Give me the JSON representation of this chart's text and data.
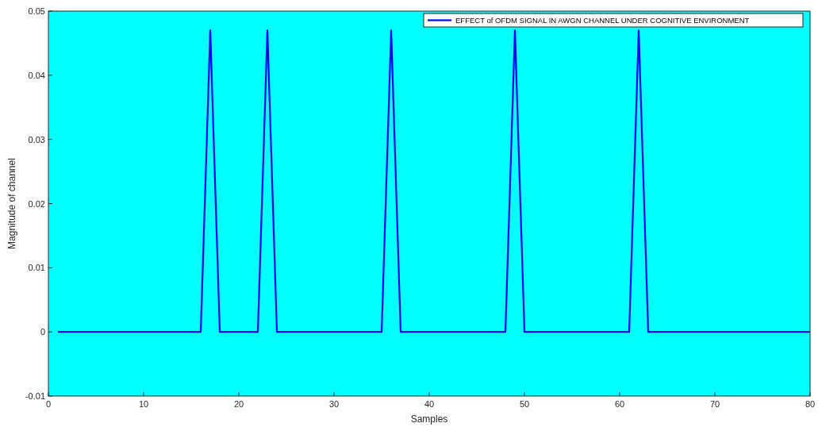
{
  "chart_data": {
    "type": "line",
    "xlabel": "Samples",
    "ylabel": "Magnitude of channel",
    "x": [
      1,
      2,
      3,
      4,
      5,
      6,
      7,
      8,
      9,
      10,
      11,
      12,
      13,
      14,
      15,
      16,
      17,
      18,
      19,
      20,
      21,
      22,
      23,
      24,
      25,
      26,
      27,
      28,
      29,
      30,
      31,
      32,
      33,
      34,
      35,
      36,
      37,
      38,
      39,
      40,
      41,
      42,
      43,
      44,
      45,
      46,
      47,
      48,
      49,
      50,
      51,
      52,
      53,
      54,
      55,
      56,
      57,
      58,
      59,
      60,
      61,
      62,
      63,
      64,
      65,
      66,
      67,
      68,
      69,
      70,
      71,
      72,
      73,
      74,
      75,
      76,
      77,
      78,
      79,
      80
    ],
    "series": [
      {
        "name": "EFFECT of OFDM SIGNAL IN AWGN CHANNEL UNDER COGNITIVE ENVIRONMENT",
        "color": "#0000ff",
        "values": [
          0,
          0,
          0,
          0,
          0,
          0,
          0,
          0,
          0,
          0,
          0,
          0,
          0,
          0,
          0,
          0,
          0.047,
          0,
          0,
          0,
          0,
          0,
          0.047,
          0,
          0,
          0,
          0,
          0,
          0,
          0,
          0,
          0,
          0,
          0,
          0,
          0.047,
          0,
          0,
          0,
          0,
          0,
          0,
          0,
          0,
          0,
          0,
          0,
          0,
          0.047,
          0,
          0,
          0,
          0,
          0,
          0,
          0,
          0,
          0,
          0,
          0,
          0,
          0.047,
          0,
          0,
          0,
          0,
          0,
          0,
          0,
          0,
          0,
          0,
          0,
          0,
          0,
          0,
          0,
          0,
          0,
          0
        ]
      }
    ],
    "xlim": [
      0,
      80
    ],
    "xticks": [
      0,
      10,
      20,
      30,
      40,
      50,
      60,
      70,
      80
    ],
    "ylim": [
      -0.01,
      0.05
    ],
    "yticks": [
      -0.01,
      0,
      0.01,
      0.02,
      0.03,
      0.04,
      0.05
    ],
    "grid": false,
    "legend": "top right",
    "marker": "none",
    "line_style": "solid"
  }
}
